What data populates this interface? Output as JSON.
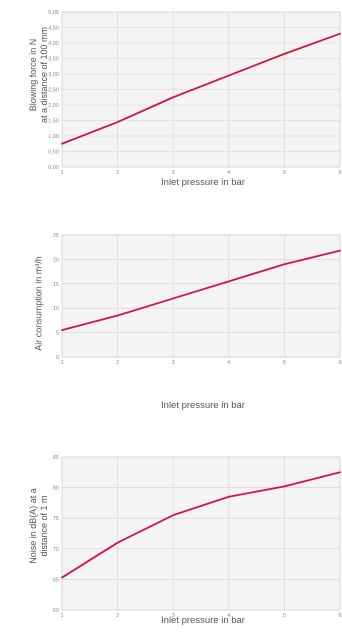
{
  "chart_data": [
    {
      "type": "line",
      "xlabel": "Inlet pressure in bar",
      "ylabel": "Blowing force in N\nat a distance of 100 mm",
      "x": [
        1,
        2,
        3,
        4,
        5,
        6
      ],
      "xlim": [
        1,
        6
      ],
      "ylim": [
        0,
        5
      ],
      "yticks": [
        "0,00",
        "0,50",
        "1,00",
        "1,50",
        "2,00",
        "2,50",
        "3,00",
        "3,50",
        "4,00",
        "4,50",
        "5,00"
      ],
      "xticks": [
        "1",
        "2",
        "3",
        "4",
        "5",
        "6"
      ],
      "series": [
        {
          "values": [
            0.75,
            1.45,
            2.25,
            2.95,
            3.65,
            4.3
          ],
          "color": "#d6153c"
        }
      ],
      "grid": true
    },
    {
      "type": "line",
      "xlabel": "Inlet pressure in bar",
      "ylabel": "Air consumption in m³/h",
      "x": [
        1,
        2,
        3,
        4,
        5,
        6
      ],
      "xlim": [
        1,
        6
      ],
      "ylim": [
        0,
        25
      ],
      "yticks": [
        "0",
        "5",
        "10",
        "15",
        "20",
        "25"
      ],
      "xticks": [
        "1",
        "2",
        "3",
        "4",
        "5",
        "6"
      ],
      "series": [
        {
          "values": [
            5.5,
            8.5,
            12,
            15.5,
            19,
            21.8
          ],
          "color": "#d6153c"
        }
      ],
      "grid": true
    },
    {
      "type": "line",
      "xlabel": "Inlet pressure in bar",
      "ylabel": "Noise in dB(A) at a\ndistance of 1 m",
      "x": [
        1,
        2,
        3,
        4,
        5,
        6
      ],
      "xlim": [
        1,
        6
      ],
      "ylim": [
        60,
        85
      ],
      "yticks": [
        "60",
        "65",
        "70",
        "75",
        "80",
        "85"
      ],
      "xticks": [
        "1",
        "2",
        "3",
        "4",
        "5",
        "6"
      ],
      "series": [
        {
          "values": [
            65.3,
            71,
            75.5,
            78.5,
            80.2,
            82.5
          ],
          "color": "#d6153c"
        }
      ],
      "grid": true
    }
  ]
}
